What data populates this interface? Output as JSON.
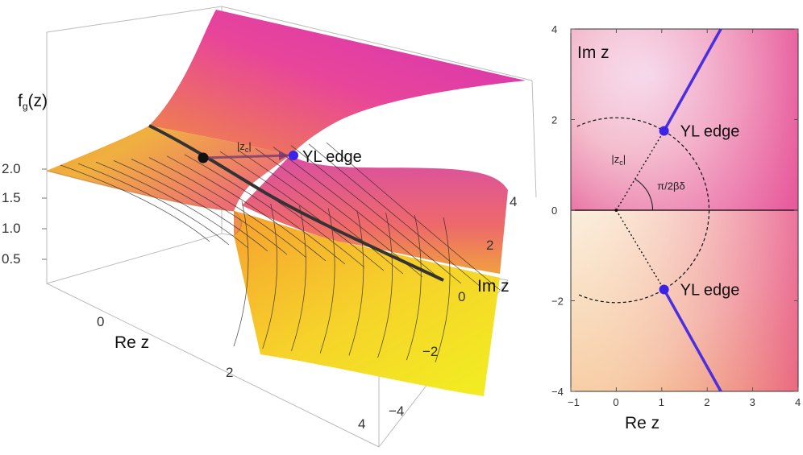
{
  "left_plot": {
    "z_axis_label": "f",
    "z_axis_label_sub": "g",
    "z_axis_label_arg": "(z)",
    "z_ticks": [
      "2.0",
      "1.5",
      "1.0",
      "0.5"
    ],
    "re_axis_label": "Re z",
    "re_ticks": [
      "0",
      "2",
      "4"
    ],
    "im_axis_label": "Im z",
    "im_ticks": [
      "4",
      "2",
      "0",
      "−2",
      "−4"
    ],
    "yl_label": "YL edge",
    "zc_label": "|z",
    "zc_sub": "c",
    "zc_close": "|"
  },
  "right_plot": {
    "title": "Im z",
    "x_axis_label": "Re z",
    "x_ticks": [
      "−1",
      "0",
      "1",
      "2",
      "3",
      "4"
    ],
    "y_ticks": [
      "4",
      "2",
      "0",
      "−2",
      "−4"
    ],
    "yl_upper_label": "YL edge",
    "yl_lower_label": "YL edge",
    "zc_label": "|z",
    "zc_sub": "c",
    "zc_close": "|",
    "angle_label": "π/2βδ",
    "yl_edge_point": [
      1.05,
      1.75
    ],
    "colors": {
      "branch_cut": "#4b2ee0",
      "yl_point": "#3a22e6"
    }
  },
  "chart_data": {
    "type": "diagram",
    "x_range": [
      -1,
      4
    ],
    "y_range": [
      -4,
      4
    ],
    "yl_edges": [
      [
        1.05,
        1.75
      ],
      [
        1.05,
        -1.75
      ]
    ],
    "branch_cuts": [
      [
        [
          1.05,
          1.75
        ],
        [
          2.3,
          4
        ]
      ],
      [
        [
          1.05,
          -1.75
        ],
        [
          2.3,
          -4
        ]
      ]
    ]
  }
}
